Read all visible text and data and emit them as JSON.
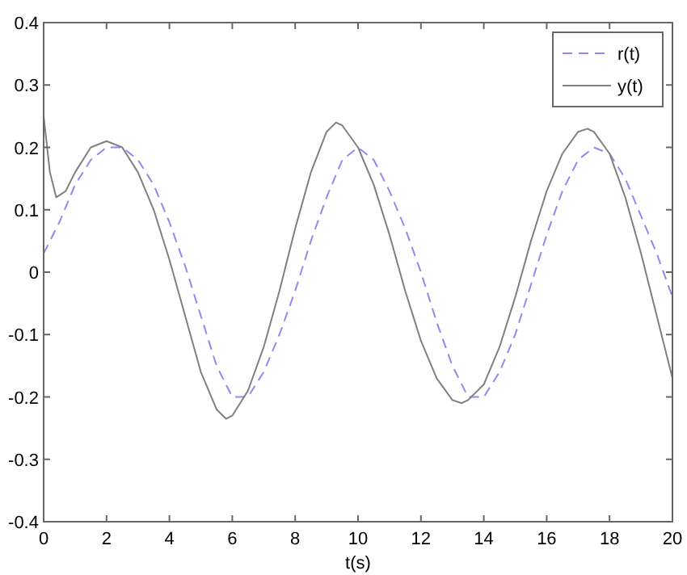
{
  "chart_data": {
    "type": "line",
    "xlabel": "t(s)",
    "xlim": [
      0,
      20
    ],
    "xticks": [
      0,
      2,
      4,
      6,
      8,
      10,
      12,
      14,
      16,
      18,
      20
    ],
    "ylim": [
      -0.4,
      0.4
    ],
    "yticks": [
      -0.4,
      -0.3,
      -0.2,
      -0.1,
      0,
      0.1,
      0.2,
      0.3,
      0.4
    ],
    "grid": false,
    "legend": "top right",
    "series": [
      {
        "name": "r(t)",
        "color": "#8c8cf0",
        "line_style": "dashed",
        "x": [
          0,
          0.5,
          1,
          1.5,
          2,
          2.5,
          3,
          3.5,
          4,
          4.5,
          5,
          5.5,
          6,
          6.5,
          7,
          7.5,
          8,
          8.5,
          9,
          9.5,
          10,
          10.5,
          11,
          11.5,
          12,
          12.5,
          13,
          13.5,
          14,
          14.5,
          15,
          15.5,
          16,
          16.5,
          17,
          17.5,
          18,
          18.5,
          19,
          19.5,
          20
        ],
        "values": [
          0.03,
          0.08,
          0.14,
          0.18,
          0.2,
          0.2,
          0.18,
          0.14,
          0.08,
          0.01,
          -0.07,
          -0.15,
          -0.2,
          -0.2,
          -0.16,
          -0.1,
          -0.03,
          0.05,
          0.12,
          0.18,
          0.2,
          0.18,
          0.13,
          0.07,
          0,
          -0.08,
          -0.15,
          -0.2,
          -0.2,
          -0.16,
          -0.1,
          -0.02,
          0.06,
          0.13,
          0.18,
          0.2,
          0.19,
          0.15,
          0.09,
          0.03,
          -0.04
        ]
      },
      {
        "name": "y(t)",
        "color": "#808080",
        "line_style": "solid",
        "x": [
          0,
          0.2,
          0.4,
          0.7,
          1,
          1.5,
          2,
          2.5,
          3,
          3.5,
          4,
          4.5,
          5,
          5.5,
          5.8,
          6,
          6.5,
          7,
          7.5,
          8,
          8.5,
          9,
          9.3,
          9.5,
          10,
          10.5,
          11,
          11.5,
          12,
          12.5,
          13,
          13.3,
          13.5,
          14,
          14.5,
          15,
          15.5,
          16,
          16.5,
          17,
          17.3,
          17.5,
          18,
          18.5,
          19,
          19.5,
          20
        ],
        "values": [
          0.25,
          0.16,
          0.12,
          0.13,
          0.16,
          0.2,
          0.21,
          0.2,
          0.16,
          0.1,
          0.02,
          -0.07,
          -0.16,
          -0.22,
          -0.235,
          -0.23,
          -0.19,
          -0.12,
          -0.03,
          0.07,
          0.16,
          0.225,
          0.24,
          0.235,
          0.2,
          0.14,
          0.06,
          -0.03,
          -0.11,
          -0.17,
          -0.205,
          -0.21,
          -0.205,
          -0.18,
          -0.12,
          -0.04,
          0.05,
          0.13,
          0.19,
          0.225,
          0.23,
          0.225,
          0.19,
          0.12,
          0.03,
          -0.07,
          -0.17
        ]
      }
    ]
  }
}
